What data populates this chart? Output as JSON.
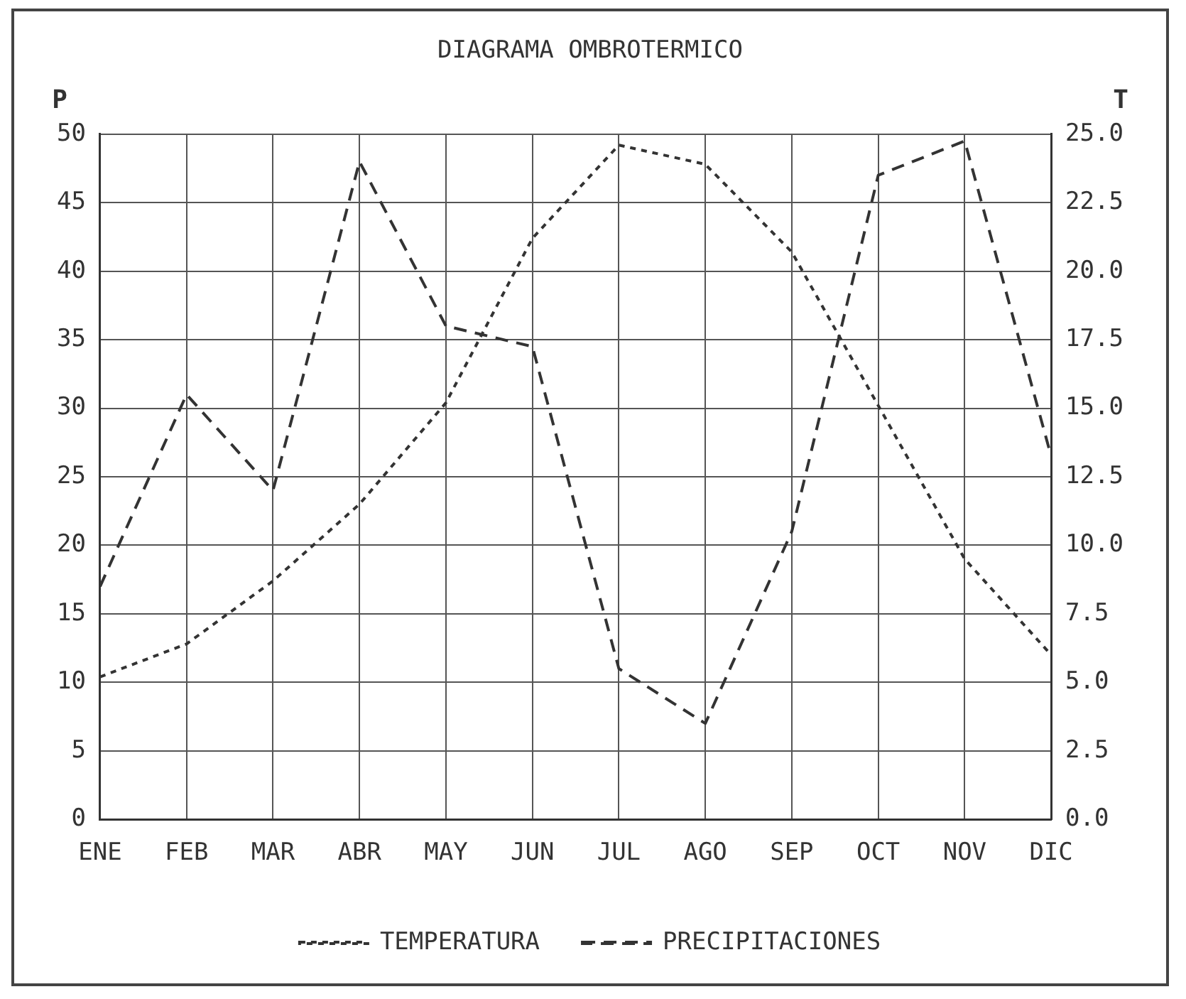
{
  "chart_data": {
    "type": "line",
    "title": "DIAGRAMA OMBROTERMICO",
    "ylabel": "P",
    "y2label": "T",
    "categories": [
      "ENE",
      "FEB",
      "MAR",
      "ABR",
      "MAY",
      "JUN",
      "JUL",
      "AGO",
      "SEP",
      "OCT",
      "NOV",
      "DIC"
    ],
    "series": [
      {
        "name": "TEMPERATURA",
        "color": "#333333",
        "axis": "y2",
        "line_style": "dotted",
        "values": [
          5.2,
          6.4,
          8.7,
          11.5,
          15.2,
          21.2,
          24.6,
          23.9,
          20.7,
          15.1,
          9.5,
          6.0
        ]
      },
      {
        "name": "PRECIPITACIONES",
        "color": "#333333",
        "line_style": "dashed",
        "values": [
          17,
          31,
          24,
          48,
          36,
          34.5,
          11,
          7,
          21,
          47,
          49.5,
          26.5
        ]
      }
    ],
    "ylim": [
      0,
      50
    ],
    "yticks": [
      0,
      5,
      10,
      15,
      20,
      25,
      30,
      35,
      40,
      45,
      50
    ],
    "y2lim": [
      0,
      25
    ],
    "y2ticks": [
      {
        "value": 0,
        "label": "0.0"
      },
      {
        "value": 2.5,
        "label": "2.5"
      },
      {
        "value": 5,
        "label": "5.0"
      },
      {
        "value": 7.5,
        "label": "7.5"
      },
      {
        "value": 10,
        "label": "10.0"
      },
      {
        "value": 12.5,
        "label": "12.5"
      },
      {
        "value": 15,
        "label": "15.0"
      },
      {
        "value": 17.5,
        "label": "17.5"
      },
      {
        "value": 20,
        "label": "20.0"
      },
      {
        "value": 22.5,
        "label": "22.5"
      },
      {
        "value": 25,
        "label": "25.0"
      }
    ],
    "grid": true,
    "legend": "bottom",
    "marker": "none"
  }
}
